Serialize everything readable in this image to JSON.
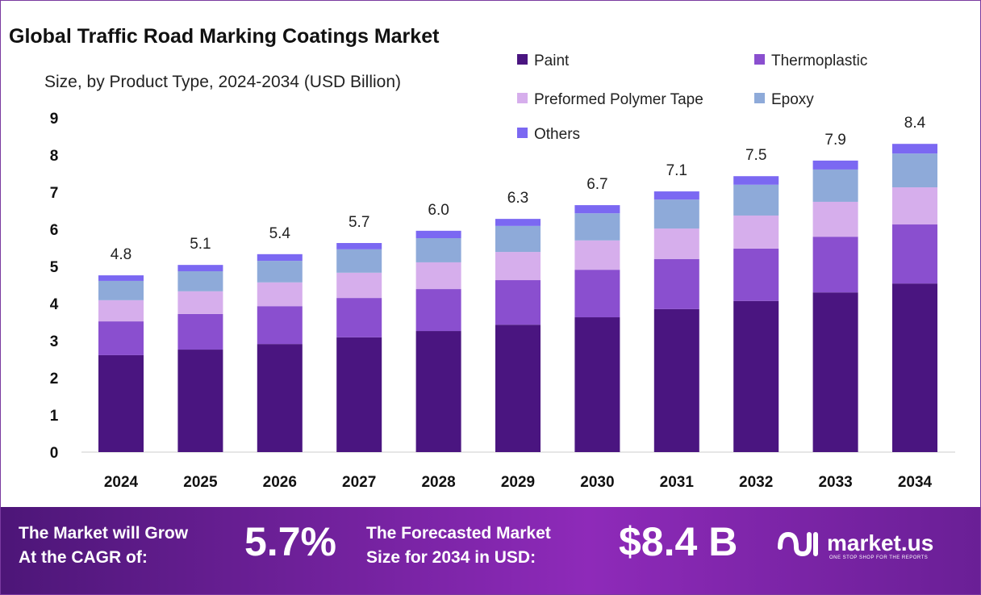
{
  "chart_data": {
    "type": "bar",
    "stacked": true,
    "title": "Global Traffic Road Marking Coatings Market",
    "subtitle": "Size, by Product Type, 2024-2034 (USD Billion)",
    "categories": [
      "2024",
      "2025",
      "2026",
      "2027",
      "2028",
      "2029",
      "2030",
      "2031",
      "2032",
      "2033",
      "2034"
    ],
    "totals_labels": [
      "4.8",
      "5.1",
      "5.4",
      "5.7",
      "6.0",
      "6.3",
      "6.7",
      "7.1",
      "7.5",
      "7.9",
      "8.4"
    ],
    "ylim": [
      0,
      9
    ],
    "yticks": [
      0,
      1,
      2,
      3,
      4,
      5,
      6,
      7,
      8,
      9
    ],
    "grid": false,
    "legend_position": "top-right",
    "series": [
      {
        "name": "Paint",
        "color": "#4a1580",
        "values": [
          2.61,
          2.76,
          2.91,
          3.09,
          3.26,
          3.43,
          3.63,
          3.85,
          4.07,
          4.3,
          4.54
        ]
      },
      {
        "name": "Thermoplastic",
        "color": "#8a4fcf",
        "values": [
          0.91,
          0.96,
          1.02,
          1.06,
          1.13,
          1.2,
          1.28,
          1.35,
          1.41,
          1.5,
          1.59
        ]
      },
      {
        "name": "Preformed Polymer Tape",
        "color": "#d6aeec",
        "values": [
          0.57,
          0.61,
          0.64,
          0.68,
          0.72,
          0.76,
          0.79,
          0.82,
          0.89,
          0.94,
          1.0
        ]
      },
      {
        "name": "Epoxy",
        "color": "#8eaad9",
        "values": [
          0.52,
          0.54,
          0.58,
          0.63,
          0.65,
          0.7,
          0.73,
          0.78,
          0.83,
          0.87,
          0.91
        ]
      },
      {
        "name": "Others",
        "color": "#7b68f2",
        "values": [
          0.15,
          0.17,
          0.18,
          0.17,
          0.2,
          0.19,
          0.22,
          0.22,
          0.23,
          0.24,
          0.26
        ]
      }
    ]
  },
  "footer": {
    "cagr_label_line1": "The Market will Grow",
    "cagr_label_line2": "At the CAGR of:",
    "cagr_value": "5.7%",
    "forecast_label_line1": "The Forecasted Market",
    "forecast_label_line2": "Size for 2034 in USD:",
    "forecast_value": "$8.4 B",
    "brand": "market.us",
    "tagline": "ONE STOP SHOP FOR THE REPORTS"
  }
}
